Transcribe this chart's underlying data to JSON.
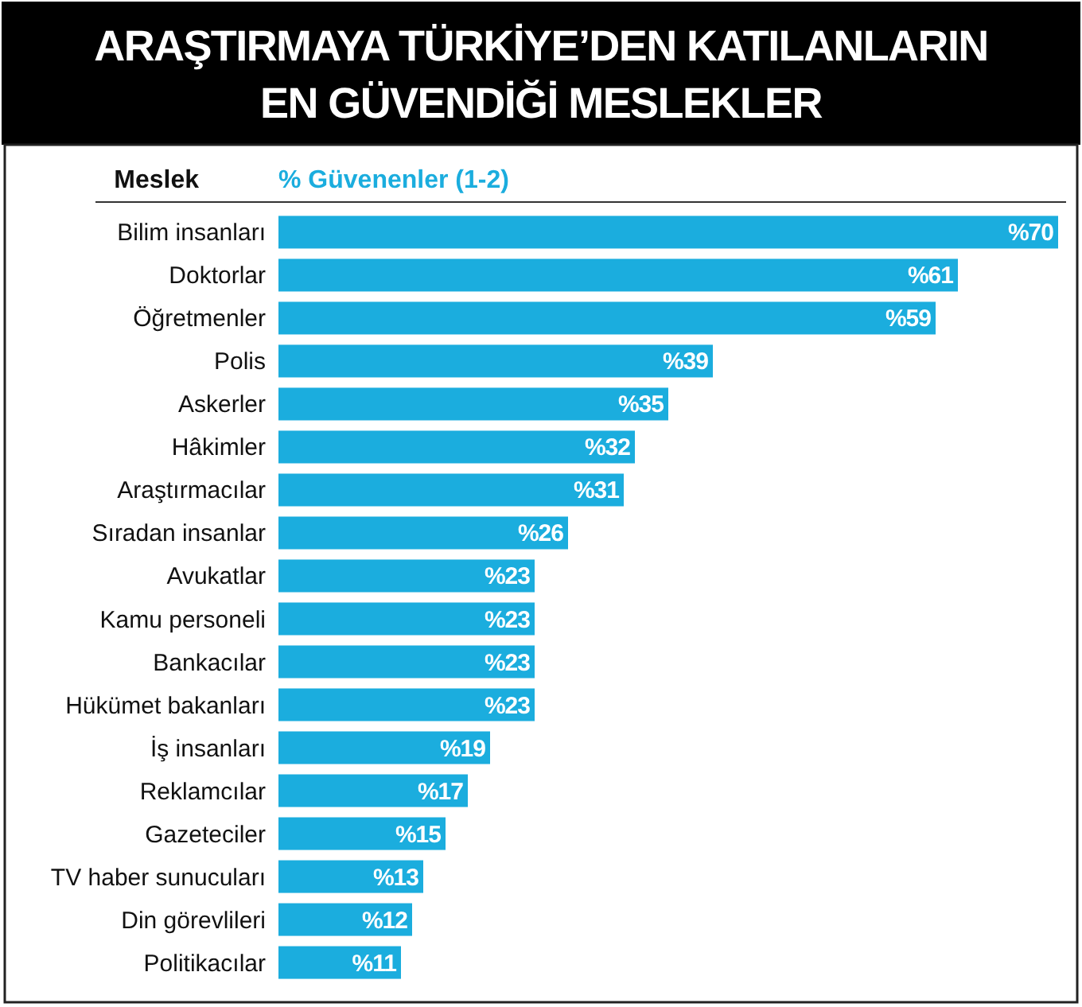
{
  "chart_data": {
    "type": "bar",
    "orientation": "horizontal",
    "title": "ARAŞTIRMAYA TÜRKİYE’DEN KATILANLARIN\nEN GÜVENDİĞİ MESLEKLER",
    "ylabel": "Meslek",
    "xlabel": "% Güvenenler (1-2)",
    "categories": [
      "Bilim insanları",
      "Doktorlar",
      "Öğretmenler",
      "Polis",
      "Askerler",
      "Hâkimler",
      "Araştırmacılar",
      "Sıradan insanlar",
      "Avukatlar",
      "Kamu personeli",
      "Bankacılar",
      "Hükümet bakanları",
      "İş insanları",
      "Reklamcılar",
      "Gazeteciler",
      "TV haber sunucuları",
      "Din görevlileri",
      "Politikacılar"
    ],
    "values": [
      70,
      61,
      59,
      39,
      35,
      32,
      31,
      26,
      23,
      23,
      23,
      23,
      19,
      17,
      15,
      13,
      12,
      11
    ],
    "value_labels": [
      "%70",
      "%61",
      "%59",
      "%39",
      "%35",
      "%32",
      "%31",
      "%26",
      "%23",
      "%23",
      "%23",
      "%23",
      "%19",
      "%17",
      "%15",
      "%13",
      "%12",
      "%11"
    ],
    "color": "#1badde"
  }
}
